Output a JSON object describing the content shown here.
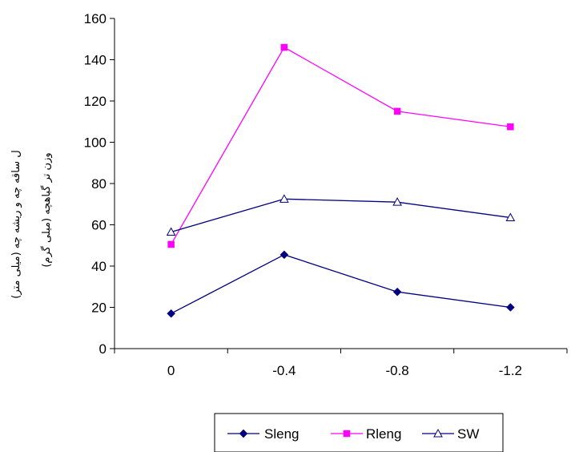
{
  "chart_data": {
    "type": "line",
    "title": "",
    "x": [
      "0",
      "-0.4",
      "-0.8",
      "-1.2"
    ],
    "xlabel": "",
    "ylabel_lines": [
      "ل ساقه چه و ریشه چه (میلی متر)",
      "وزن تر گیاهچه (میلی گرم)"
    ],
    "ylim": [
      0,
      160
    ],
    "yticks": [
      0,
      20,
      40,
      60,
      80,
      100,
      120,
      140,
      160
    ],
    "grid": false,
    "legend_position": "bottom",
    "series": [
      {
        "name": "Sleng",
        "values": [
          17,
          45.5,
          27.5,
          20
        ],
        "color": "#000080",
        "marker": "diamond"
      },
      {
        "name": "Rleng",
        "values": [
          50.5,
          146,
          115,
          107.5
        ],
        "color": "#FF00FF",
        "marker": "square"
      },
      {
        "name": "SW",
        "values": [
          56.5,
          72.5,
          71,
          63.5
        ],
        "color": "#000080",
        "marker": "triangle"
      }
    ]
  }
}
